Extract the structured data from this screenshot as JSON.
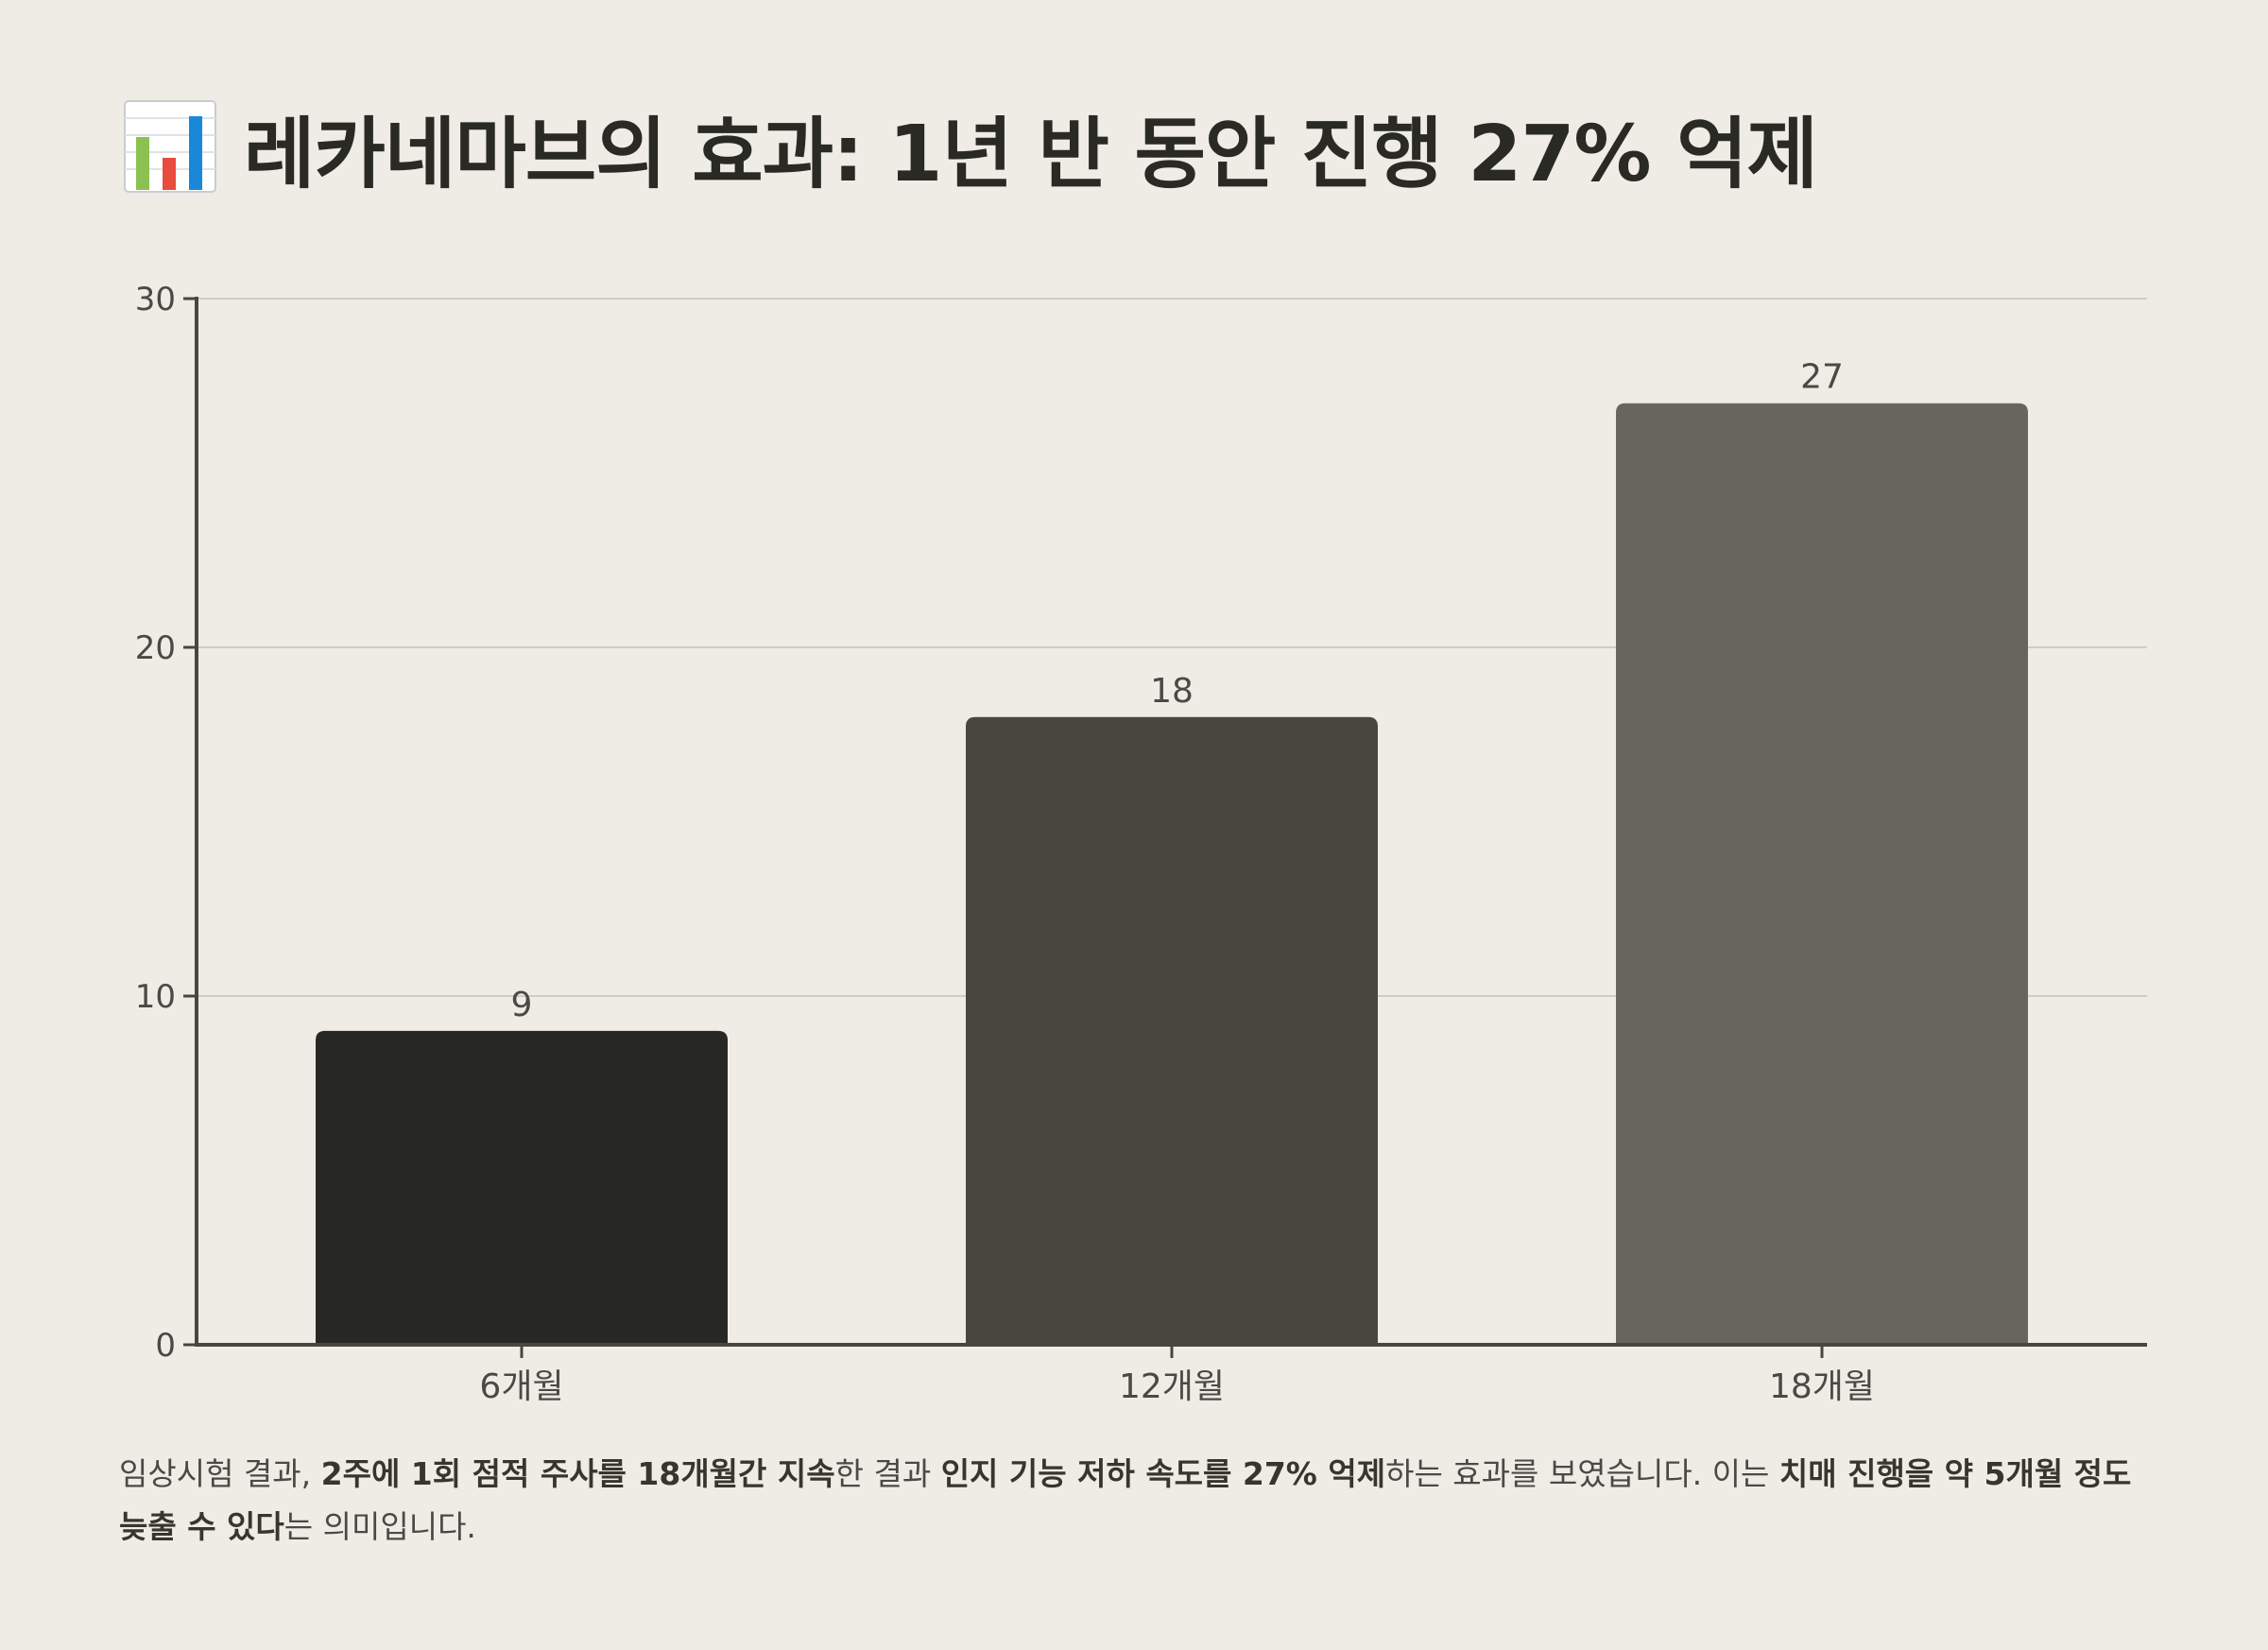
{
  "title": {
    "icon": "bar-chart-icon",
    "text": "레카네마브의 효과: 1년 반 동안 진행 27% 억제"
  },
  "chart_data": {
    "type": "bar",
    "categories": [
      "6개월",
      "12개월",
      "18개월"
    ],
    "values": [
      9,
      18,
      27
    ],
    "data_labels": [
      "9",
      "18",
      "27"
    ],
    "ylim": [
      0,
      30
    ],
    "yticks": [
      0,
      10,
      20,
      30
    ],
    "ytick_labels": [
      "0",
      "10",
      "20",
      "30"
    ],
    "grid": true,
    "legend": "none",
    "bar_colors": [
      "#272823",
      "#474740",
      "#66665e"
    ],
    "axis_color": "#47473f",
    "grid_color": "#cfcdc7"
  },
  "caption": {
    "segments": [
      {
        "text": "임상시험 결과, ",
        "bold": false
      },
      {
        "text": "2주에 1회 점적 주사를 18개월간 지속",
        "bold": true
      },
      {
        "text": "한 결과 ",
        "bold": false
      },
      {
        "text": "인지 기능 저하 속도를 27% 억제",
        "bold": true
      },
      {
        "text": "하는 효과를 보였습니다. 이는 ",
        "bold": false
      },
      {
        "text": "치매 진행을 약 5개월 정도 늦출 수 있다",
        "bold": true
      },
      {
        "text": "는 의미입니다.",
        "bold": false
      }
    ]
  }
}
